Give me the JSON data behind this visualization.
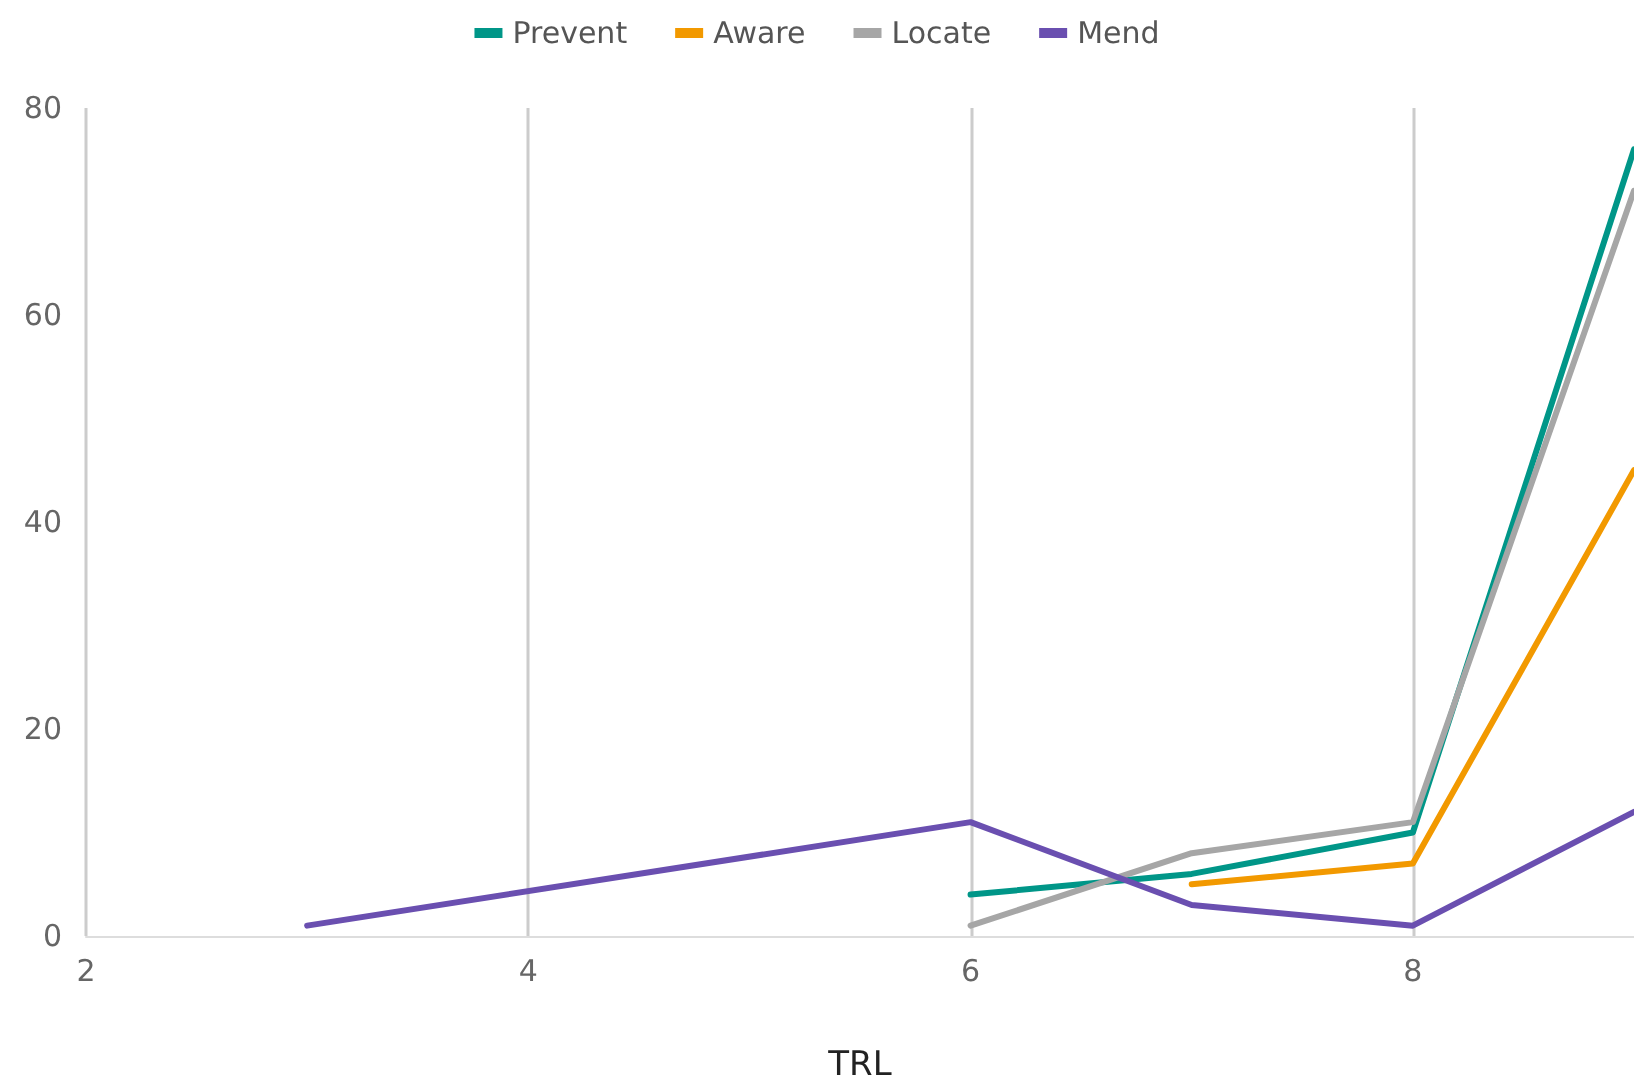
{
  "chart_data": {
    "type": "line",
    "xlabel": "TRL",
    "legend": "top",
    "grid": "x",
    "marker": "none",
    "line_style": "solid",
    "xlim": [
      2,
      9
    ],
    "xticks": [
      2,
      4,
      6,
      8
    ],
    "ylim": [
      0,
      80
    ],
    "yticks": [
      0,
      20,
      40,
      60,
      80
    ],
    "series": [
      {
        "name": "Prevent",
        "color": "#009688",
        "x": [
          6,
          7,
          8,
          9
        ],
        "values": [
          4,
          6,
          10,
          76
        ]
      },
      {
        "name": "Aware",
        "color": "#f29900",
        "x": [
          7,
          8,
          9
        ],
        "values": [
          5,
          7,
          45
        ]
      },
      {
        "name": "Locate",
        "color": "#a6a6a6",
        "x": [
          6,
          7,
          8,
          9
        ],
        "values": [
          1,
          8,
          11,
          72
        ]
      },
      {
        "name": "Mend",
        "color": "#6a4fb0",
        "x": [
          3,
          6,
          7,
          8,
          9
        ],
        "values": [
          1,
          11,
          3,
          1,
          12
        ]
      }
    ]
  }
}
